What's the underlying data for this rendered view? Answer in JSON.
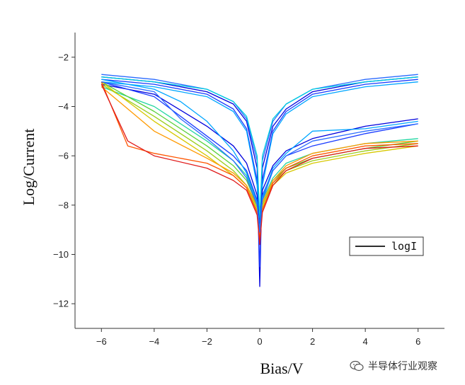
{
  "chart_data": {
    "type": "line",
    "xlabel": "Bias/V",
    "ylabel": "Log/Current",
    "xlim": [
      -7,
      7
    ],
    "ylim": [
      -13,
      -1
    ],
    "xticks": [
      -6,
      -4,
      -2,
      0,
      2,
      4,
      6
    ],
    "yticks": [
      -12,
      -10,
      -8,
      -6,
      -4,
      -2
    ],
    "grid": false,
    "legend": {
      "position": "right-middle",
      "entries": [
        "logI"
      ]
    },
    "sweep_colors": [
      "#0000dd",
      "#1a3cff",
      "#2a6bff",
      "#00a6ff",
      "#00cfe0",
      "#23d6a0",
      "#5ad13a",
      "#9acd1c",
      "#d7c800",
      "#ff9a00",
      "#ff5500",
      "#e01a1a"
    ],
    "sweeps": [
      {
        "color_index": 0,
        "x": [
          -6,
          -4,
          -2,
          -1,
          -0.5,
          -0.1,
          0,
          0.1,
          0.5,
          1,
          2,
          4,
          6
        ],
        "y": [
          -2.8,
          -3.0,
          -3.4,
          -3.9,
          -4.6,
          -6.5,
          -11.3,
          -6.5,
          -4.8,
          -4.1,
          -3.4,
          -3.0,
          -2.8
        ]
      },
      {
        "color_index": 1,
        "x": [
          -6,
          -4,
          -2,
          -1,
          -0.5,
          -0.1,
          0,
          0.1,
          0.5,
          1,
          2,
          4,
          6
        ],
        "y": [
          -2.9,
          -3.1,
          -3.5,
          -4.1,
          -4.9,
          -7.0,
          -10.5,
          -7.0,
          -5.0,
          -4.2,
          -3.5,
          -3.1,
          -2.9
        ]
      },
      {
        "color_index": 2,
        "x": [
          -6,
          -4,
          -2,
          -1,
          -0.5,
          -0.1,
          0,
          0.1,
          0.5,
          1,
          2,
          4,
          6
        ],
        "y": [
          -2.7,
          -2.9,
          -3.3,
          -3.8,
          -4.5,
          -6.2,
          -9.0,
          -6.2,
          -4.6,
          -3.9,
          -3.3,
          -2.9,
          -2.7
        ]
      },
      {
        "color_index": 3,
        "x": [
          -6,
          -4,
          -2,
          -1,
          -0.5,
          -0.1,
          0,
          0.1,
          0.5,
          1,
          2,
          4,
          6
        ],
        "y": [
          -3.0,
          -3.2,
          -3.6,
          -4.2,
          -5.0,
          -7.2,
          -9.5,
          -7.2,
          -5.1,
          -4.3,
          -3.6,
          -3.2,
          -3.0
        ]
      },
      {
        "color_index": 4,
        "x": [
          -6,
          -4,
          -2,
          -1,
          -0.5,
          -0.1,
          0,
          0.1,
          0.5,
          1,
          2,
          4,
          6
        ],
        "y": [
          -2.8,
          -3.0,
          -3.3,
          -3.8,
          -4.4,
          -6.0,
          -8.5,
          -6.0,
          -4.5,
          -3.9,
          -3.3,
          -3.0,
          -2.8
        ]
      },
      {
        "color_index": 0,
        "x": [
          -6,
          -4,
          -2,
          -1,
          -0.5,
          -0.1,
          0,
          0.1,
          0.5,
          1,
          2,
          4,
          6
        ],
        "y": [
          -3.1,
          -3.5,
          -4.8,
          -5.6,
          -6.3,
          -7.6,
          -9.0,
          -7.4,
          -6.4,
          -5.8,
          -5.3,
          -4.8,
          -4.5
        ]
      },
      {
        "color_index": 1,
        "x": [
          -6,
          -4,
          -2,
          -1,
          -0.5,
          -0.1,
          0,
          0.1,
          0.5,
          1,
          2,
          4,
          6
        ],
        "y": [
          -3.0,
          -3.6,
          -5.2,
          -6.0,
          -6.6,
          -7.8,
          -9.2,
          -7.6,
          -6.6,
          -6.0,
          -5.6,
          -5.1,
          -4.7
        ]
      },
      {
        "color_index": 5,
        "x": [
          -6,
          -4,
          -2,
          -1,
          -0.5,
          -0.1,
          0,
          0.1,
          0.5,
          1,
          2,
          4,
          6
        ],
        "y": [
          -3.2,
          -4.0,
          -5.4,
          -6.2,
          -6.8,
          -7.9,
          -9.1,
          -7.8,
          -6.9,
          -6.3,
          -5.9,
          -5.5,
          -5.3
        ]
      },
      {
        "color_index": 6,
        "x": [
          -6,
          -4,
          -2,
          -1,
          -0.5,
          -0.1,
          0,
          0.1,
          0.5,
          1,
          2,
          4,
          6
        ],
        "y": [
          -3.0,
          -4.2,
          -5.6,
          -6.4,
          -7.0,
          -8.0,
          -9.3,
          -7.9,
          -7.0,
          -6.5,
          -6.1,
          -5.7,
          -5.4
        ]
      },
      {
        "color_index": 7,
        "x": [
          -6,
          -4,
          -2,
          -1,
          -0.5,
          -0.1,
          0,
          0.1,
          0.5,
          1,
          2,
          4,
          6
        ],
        "y": [
          -3.1,
          -4.4,
          -5.8,
          -6.6,
          -7.2,
          -8.1,
          -9.4,
          -8.0,
          -7.1,
          -6.6,
          -6.2,
          -5.8,
          -5.5
        ]
      },
      {
        "color_index": 8,
        "x": [
          -6,
          -4,
          -2,
          -1,
          -0.5,
          -0.1,
          0,
          0.1,
          0.5,
          1,
          2,
          4,
          6
        ],
        "y": [
          -3.0,
          -4.6,
          -6.0,
          -6.8,
          -7.3,
          -8.2,
          -9.5,
          -8.1,
          -7.2,
          -6.7,
          -6.3,
          -5.9,
          -5.6
        ]
      },
      {
        "color_index": 9,
        "x": [
          -6,
          -4,
          -2,
          -1,
          -0.5,
          -0.1,
          0,
          0.1,
          0.5,
          1,
          2,
          4,
          6
        ],
        "y": [
          -3.2,
          -5.0,
          -6.1,
          -6.7,
          -7.2,
          -8.0,
          -9.2,
          -7.9,
          -7.0,
          -6.4,
          -5.9,
          -5.5,
          -5.4
        ]
      },
      {
        "color_index": 10,
        "x": [
          -6,
          -5,
          -4,
          -2,
          -1,
          -0.5,
          -0.1,
          0,
          0.1,
          0.5,
          1,
          2,
          4,
          6
        ],
        "y": [
          -3.0,
          -5.6,
          -5.9,
          -6.3,
          -6.8,
          -7.3,
          -8.3,
          -9.4,
          -8.2,
          -7.1,
          -6.5,
          -6.0,
          -5.6,
          -5.5
        ]
      },
      {
        "color_index": 11,
        "x": [
          -6,
          -5,
          -4,
          -2,
          -1,
          -0.5,
          -0.1,
          0,
          0.1,
          0.5,
          1,
          2,
          4,
          6
        ],
        "y": [
          -3.1,
          -5.4,
          -6.0,
          -6.5,
          -7.0,
          -7.4,
          -8.4,
          -9.6,
          -8.3,
          -7.2,
          -6.6,
          -6.1,
          -5.7,
          -5.6
        ]
      },
      {
        "color_index": 3,
        "x": [
          -6,
          -4,
          -3,
          -2,
          -1,
          -0.5,
          -0.1,
          0,
          0.1,
          0.5,
          1,
          2,
          4,
          6
        ],
        "y": [
          -2.9,
          -3.3,
          -3.8,
          -4.6,
          -5.8,
          -6.7,
          -7.9,
          -9.0,
          -7.7,
          -6.5,
          -5.9,
          -5.0,
          -4.9,
          -4.6
        ]
      },
      {
        "color_index": 2,
        "x": [
          -6,
          -4,
          -3,
          -2,
          -1,
          -0.5,
          -0.1,
          0,
          0.1,
          0.5,
          1,
          2,
          4,
          6
        ],
        "y": [
          -3.0,
          -3.4,
          -4.5,
          -5.3,
          -6.2,
          -6.9,
          -8.0,
          -9.1,
          -7.8,
          -6.6,
          -6.0,
          -5.4,
          -5.0,
          -4.7
        ]
      }
    ]
  },
  "watermark": {
    "text": "半导体行业观察",
    "icon": "wechat-icon"
  }
}
